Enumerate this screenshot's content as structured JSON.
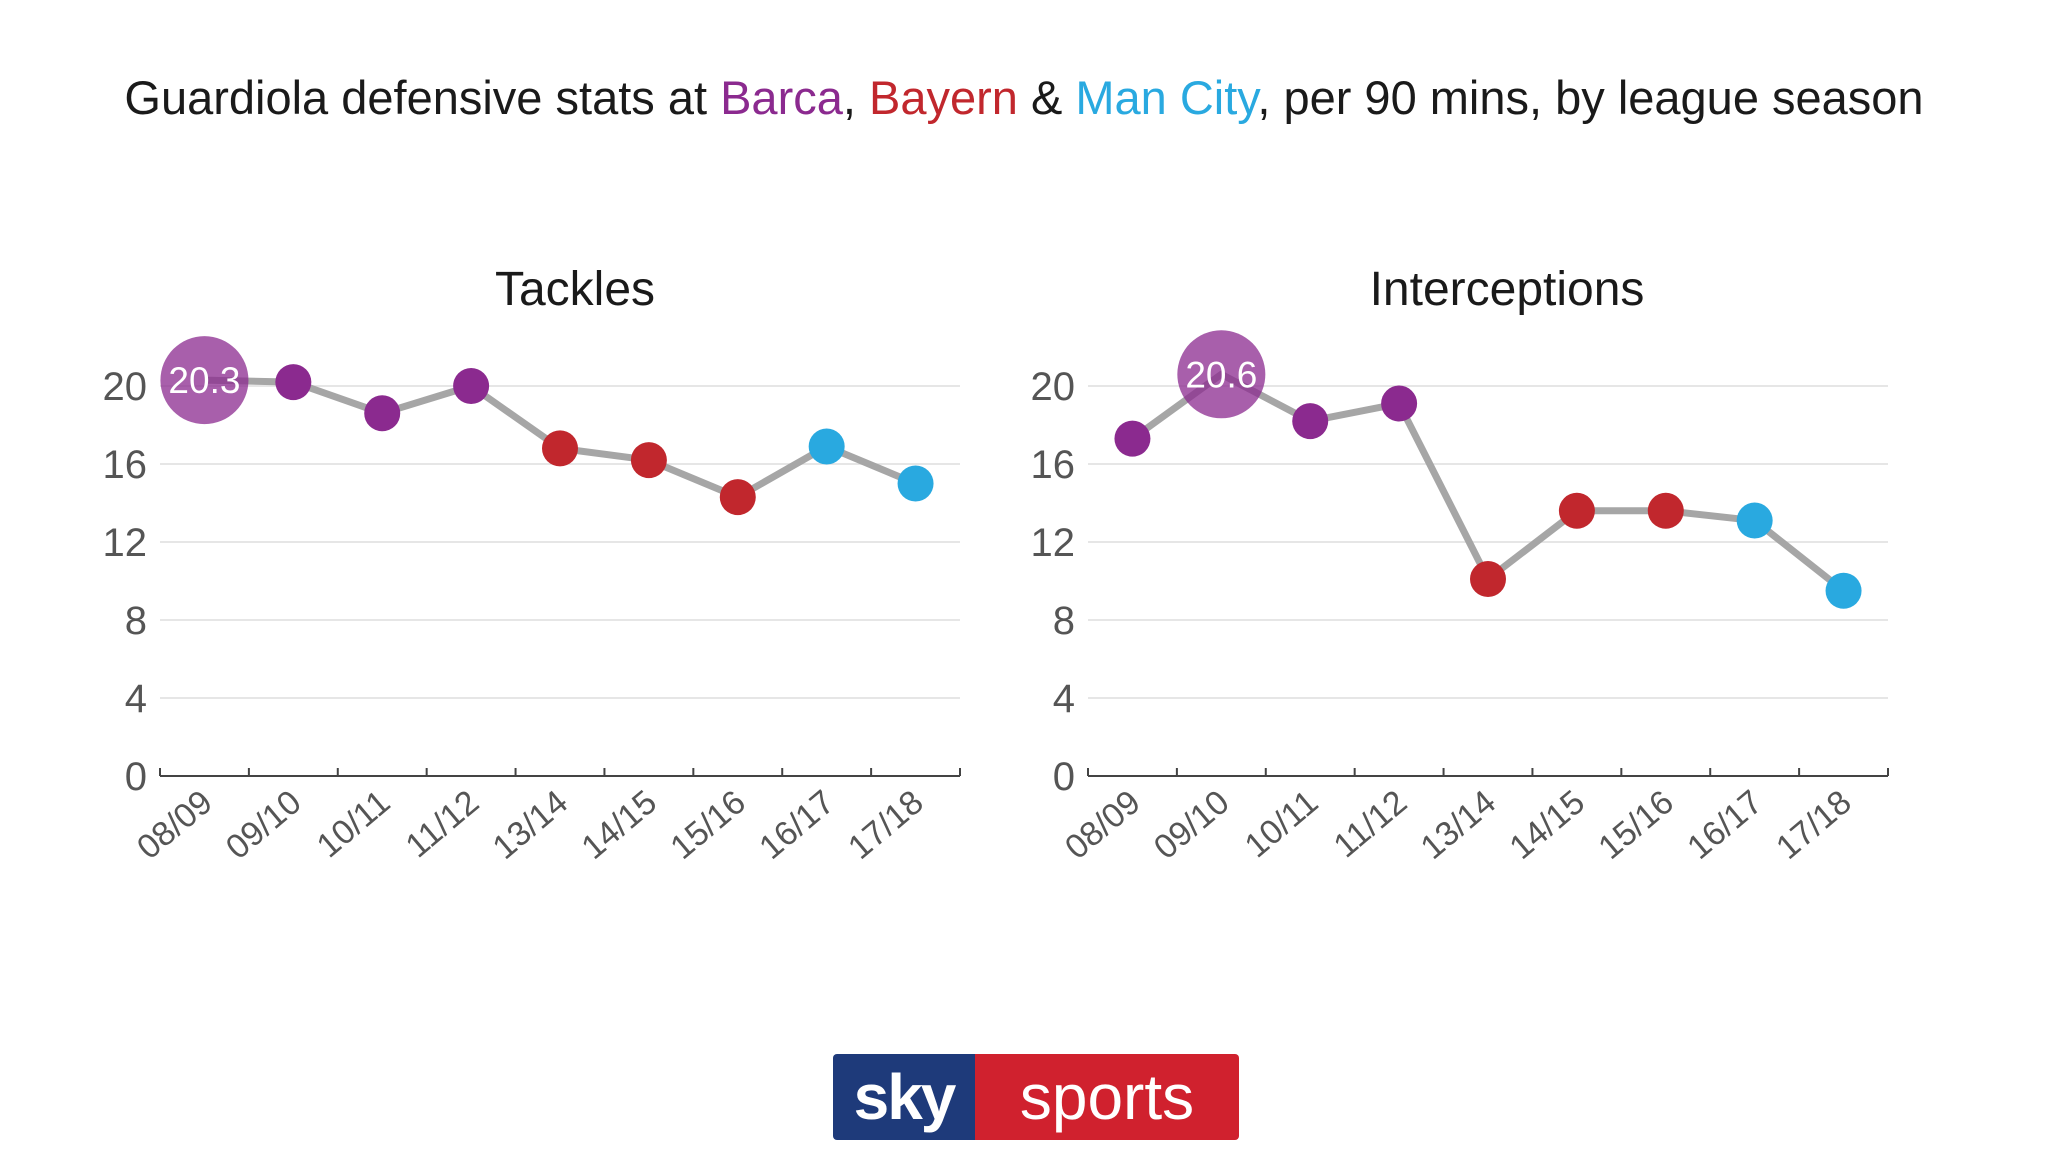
{
  "title": {
    "prefix": "Guardiola defensive stats at ",
    "barca": "Barca",
    "sep1": ", ",
    "bayern": "Bayern",
    "sep2": " & ",
    "city": "Man City",
    "suffix": ", per 90 mins, by league season"
  },
  "colors": {
    "barca": "#8b2a8f",
    "bayern": "#c1272d",
    "city": "#29a9e0",
    "line": "#a6a6a6",
    "grid": "#dddddd"
  },
  "logo": {
    "sky": "sky",
    "sports": "sports"
  },
  "chart_data": [
    {
      "type": "line",
      "title": "Tackles",
      "categories": [
        "08/09",
        "09/10",
        "10/11",
        "11/12",
        "13/14",
        "14/15",
        "15/16",
        "16/17",
        "17/18"
      ],
      "values": [
        20.3,
        20.2,
        18.6,
        20.0,
        16.8,
        16.2,
        14.3,
        16.9,
        15.0
      ],
      "clubs": [
        "barca",
        "barca",
        "barca",
        "barca",
        "bayern",
        "bayern",
        "bayern",
        "city",
        "city"
      ],
      "highlight": {
        "index": 0,
        "label": "20.3"
      },
      "yticks": [
        0,
        4,
        8,
        12,
        16,
        20
      ],
      "ylim": [
        0,
        20
      ]
    },
    {
      "type": "line",
      "title": "Interceptions",
      "categories": [
        "08/09",
        "09/10",
        "10/11",
        "11/12",
        "13/14",
        "14/15",
        "15/16",
        "16/17",
        "17/18"
      ],
      "values": [
        17.3,
        20.6,
        18.2,
        19.1,
        10.1,
        13.6,
        13.6,
        13.1,
        9.5
      ],
      "clubs": [
        "barca",
        "barca",
        "barca",
        "barca",
        "bayern",
        "bayern",
        "bayern",
        "city",
        "city"
      ],
      "highlight": {
        "index": 1,
        "label": "20.6"
      },
      "yticks": [
        0,
        4,
        8,
        12,
        16,
        20
      ],
      "ylim": [
        0,
        20
      ]
    }
  ]
}
